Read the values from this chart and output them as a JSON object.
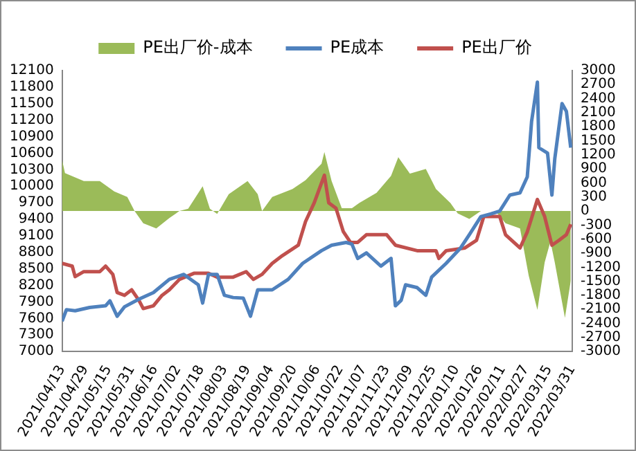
{
  "chart_data": {
    "type": "line",
    "legend": "top",
    "grid": false,
    "marker": "none",
    "line_style": "solid",
    "xlim": [
      "2021-04-13",
      "2022-03-31"
    ],
    "xticks": [
      {
        "value": "2021-04-13",
        "label": "2021/04/13"
      },
      {
        "value": "2021-04-29",
        "label": "2021/04/29"
      },
      {
        "value": "2021-05-15",
        "label": "2021/05/15"
      },
      {
        "value": "2021-05-31",
        "label": "2021/05/31"
      },
      {
        "value": "2021-06-16",
        "label": "2021/06/16"
      },
      {
        "value": "2021-07-02",
        "label": "2021/07/02"
      },
      {
        "value": "2021-07-18",
        "label": "2021/07/18"
      },
      {
        "value": "2021-08-03",
        "label": "2021/08/03"
      },
      {
        "value": "2021-08-19",
        "label": "2021/08/19"
      },
      {
        "value": "2021-09-04",
        "label": "2021/09/04"
      },
      {
        "value": "2021-09-20",
        "label": "2021/09/20"
      },
      {
        "value": "2021-10-06",
        "label": "2021/10/06"
      },
      {
        "value": "2021-10-22",
        "label": "2021/10/22"
      },
      {
        "value": "2021-11-07",
        "label": "2021/11/07"
      },
      {
        "value": "2021-11-23",
        "label": "2021/11/23"
      },
      {
        "value": "2021-12-09",
        "label": "2021/12/09"
      },
      {
        "value": "2021-12-25",
        "label": "2021/12/25"
      },
      {
        "value": "2022-01-10",
        "label": "2022/01/10"
      },
      {
        "value": "2022-01-26",
        "label": "2022/01/26"
      },
      {
        "value": "2022-02-11",
        "label": "2022/02/11"
      },
      {
        "value": "2022-02-27",
        "label": "2022/02/27"
      },
      {
        "value": "2022-03-15",
        "label": "2022/03/15"
      },
      {
        "value": "2022-03-31",
        "label": "2022/03/31"
      }
    ],
    "ylim": [
      7000,
      12100
    ],
    "yticks": [
      7000,
      7300,
      7600,
      7900,
      8200,
      8500,
      8800,
      9100,
      9400,
      9700,
      10000,
      10300,
      10600,
      10900,
      11200,
      11500,
      11800,
      12100
    ],
    "y2lim": [
      -3000,
      3000
    ],
    "y2ticks": [
      -3000,
      -2700,
      -2400,
      -2100,
      -1800,
      -1500,
      -1200,
      -900,
      -600,
      -300,
      0,
      300,
      600,
      900,
      1200,
      1500,
      1800,
      2100,
      2400,
      2700,
      3000
    ],
    "series": [
      {
        "name": "PE出厂价-成本",
        "type": "area",
        "axis": "y2",
        "color": "#9bbb59",
        "x": [
          "2021-04-13",
          "2021-04-15",
          "2021-04-28",
          "2021-05-09",
          "2021-05-19",
          "2021-05-28",
          "2021-06-02",
          "2021-06-08",
          "2021-06-17",
          "2021-06-26",
          "2021-07-03",
          "2021-07-09",
          "2021-07-19",
          "2021-07-24",
          "2021-07-29",
          "2021-08-06",
          "2021-08-19",
          "2021-08-26",
          "2021-08-29",
          "2021-09-05",
          "2021-09-19",
          "2021-09-28",
          "2021-10-09",
          "2021-10-11",
          "2021-10-16",
          "2021-10-23",
          "2021-10-30",
          "2021-11-04",
          "2021-11-16",
          "2021-11-26",
          "2021-12-01",
          "2021-12-09",
          "2021-12-20",
          "2021-12-27",
          "2022-01-06",
          "2022-01-11",
          "2022-01-19",
          "2022-01-27",
          "2022-02-06",
          "2022-02-13",
          "2022-02-23",
          "2022-03-01",
          "2022-03-07",
          "2022-03-12",
          "2022-03-16",
          "2022-03-19",
          "2022-03-26",
          "2022-03-30"
        ],
        "values": [
          1090,
          810,
          640,
          640,
          420,
          300,
          0,
          -260,
          -370,
          -150,
          0,
          50,
          530,
          50,
          -60,
          360,
          640,
          360,
          0,
          300,
          470,
          660,
          1010,
          1260,
          640,
          60,
          60,
          170,
          390,
          750,
          1150,
          800,
          900,
          470,
          170,
          -50,
          -170,
          0,
          0,
          -260,
          -370,
          -1380,
          -2110,
          -1100,
          -650,
          -1100,
          -2280,
          -1490
        ]
      },
      {
        "name": "PE成本",
        "type": "line",
        "axis": "y",
        "color": "#4f81bd",
        "x": [
          "2021-04-13",
          "2021-04-16",
          "2021-04-22",
          "2021-05-02",
          "2021-05-13",
          "2021-05-16",
          "2021-05-21",
          "2021-05-26",
          "2021-06-05",
          "2021-06-15",
          "2021-06-26",
          "2021-07-06",
          "2021-07-16",
          "2021-07-19",
          "2021-07-23",
          "2021-07-29",
          "2021-08-03",
          "2021-08-09",
          "2021-08-16",
          "2021-08-21",
          "2021-08-26",
          "2021-09-05",
          "2021-09-16",
          "2021-09-26",
          "2021-10-09",
          "2021-10-16",
          "2021-10-26",
          "2021-10-30",
          "2021-11-03",
          "2021-11-09",
          "2021-11-19",
          "2021-11-26",
          "2021-11-29",
          "2021-12-03",
          "2021-12-06",
          "2021-12-14",
          "2021-12-20",
          "2021-12-24",
          "2022-01-03",
          "2022-01-13",
          "2022-01-19",
          "2022-01-27",
          "2022-02-03",
          "2022-02-09",
          "2022-02-16",
          "2022-02-23",
          "2022-02-28",
          "2022-03-03",
          "2022-03-07",
          "2022-03-08",
          "2022-03-14",
          "2022-03-17",
          "2022-03-19",
          "2022-03-24",
          "2022-03-27",
          "2022-03-30"
        ],
        "values": [
          7550,
          7760,
          7740,
          7800,
          7830,
          7920,
          7640,
          7810,
          7950,
          8070,
          8310,
          8400,
          8210,
          7880,
          8400,
          8400,
          8020,
          7980,
          7970,
          7640,
          8120,
          8120,
          8310,
          8600,
          8830,
          8930,
          8980,
          8950,
          8690,
          8790,
          8550,
          8690,
          7830,
          7930,
          8210,
          8160,
          8020,
          8350,
          8600,
          8880,
          9120,
          9450,
          9500,
          9550,
          9840,
          9880,
          10170,
          11180,
          11890,
          10700,
          10600,
          9840,
          10500,
          11500,
          11360,
          10700
        ]
      },
      {
        "name": "PE出厂价",
        "type": "line",
        "axis": "y",
        "color": "#c0504d",
        "x": [
          "2021-04-13",
          "2021-04-20",
          "2021-04-22",
          "2021-04-28",
          "2021-05-09",
          "2021-05-13",
          "2021-05-18",
          "2021-05-21",
          "2021-05-26",
          "2021-05-31",
          "2021-06-05",
          "2021-06-08",
          "2021-06-15",
          "2021-06-21",
          "2021-06-26",
          "2021-07-03",
          "2021-07-13",
          "2021-07-23",
          "2021-07-29",
          "2021-08-09",
          "2021-08-18",
          "2021-08-23",
          "2021-08-29",
          "2021-09-05",
          "2021-09-12",
          "2021-09-23",
          "2021-09-28",
          "2021-10-04",
          "2021-10-11",
          "2021-10-14",
          "2021-10-19",
          "2021-10-24",
          "2021-10-29",
          "2021-11-03",
          "2021-11-09",
          "2021-11-23",
          "2021-11-29",
          "2021-12-14",
          "2021-12-27",
          "2021-12-29",
          "2022-01-03",
          "2022-01-16",
          "2022-01-24",
          "2022-01-29",
          "2022-02-09",
          "2022-02-13",
          "2022-02-23",
          "2022-02-28",
          "2022-03-07",
          "2022-03-12",
          "2022-03-17",
          "2022-03-22",
          "2022-03-27",
          "2022-03-30"
        ],
        "values": [
          8600,
          8550,
          8360,
          8450,
          8450,
          8550,
          8400,
          8070,
          8020,
          8120,
          7930,
          7780,
          7830,
          8020,
          8120,
          8310,
          8420,
          8420,
          8350,
          8350,
          8450,
          8310,
          8400,
          8600,
          8740,
          8930,
          9360,
          9700,
          10200,
          9700,
          9600,
          9180,
          8980,
          8980,
          9120,
          9120,
          8930,
          8830,
          8830,
          8690,
          8830,
          8880,
          9020,
          9450,
          9450,
          9120,
          8880,
          9170,
          9760,
          9450,
          8930,
          9020,
          9120,
          9310
        ]
      }
    ]
  }
}
